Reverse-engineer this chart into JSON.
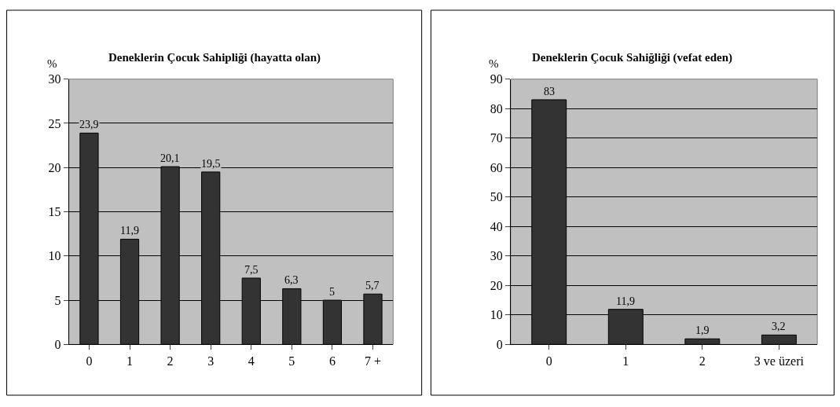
{
  "chart_data": [
    {
      "type": "bar",
      "title": "Deneklerin Çocuk Sahipliği (hayatta olan)",
      "ylabel": "%",
      "categories": [
        "0",
        "1",
        "2",
        "3",
        "4",
        "5",
        "6",
        "7 +"
      ],
      "series": [
        {
          "color": "#333333",
          "values": [
            23.9,
            11.9,
            20.1,
            19.5,
            7.5,
            6.3,
            5,
            5.7
          ],
          "value_labels": [
            "23,9",
            "11,9",
            "20,1",
            "19,5",
            "7,5",
            "6,3",
            "5",
            "5,7"
          ]
        }
      ],
      "ylim": [
        0,
        30
      ],
      "yticks": [
        0,
        5,
        10,
        15,
        20,
        25,
        30
      ],
      "grid": "y"
    },
    {
      "type": "bar",
      "title": "Deneklerin Çocuk Sahiğliği (vefat eden)",
      "ylabel": "%",
      "categories": [
        "0",
        "1",
        "2",
        "3 ve üzeri"
      ],
      "series": [
        {
          "color": "#333333",
          "values": [
            83,
            11.9,
            1.9,
            3.2
          ],
          "value_labels": [
            "83",
            "11,9",
            "1,9",
            "3,2"
          ]
        }
      ],
      "ylim": [
        0,
        90
      ],
      "yticks": [
        0,
        10,
        20,
        30,
        40,
        50,
        60,
        70,
        80,
        90
      ],
      "grid": "y"
    }
  ]
}
